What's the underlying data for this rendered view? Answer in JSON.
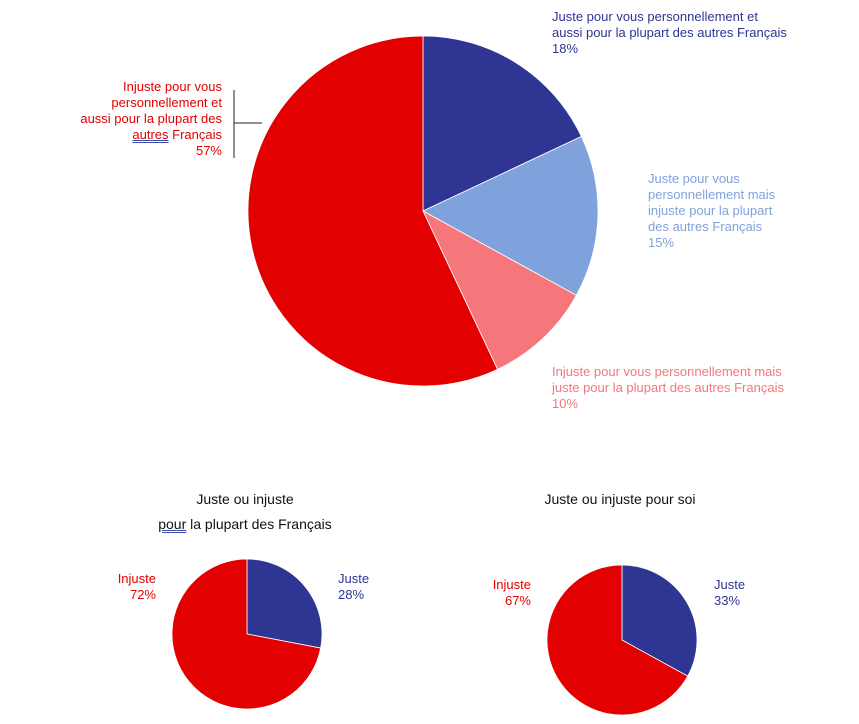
{
  "chart_data": [
    {
      "type": "pie",
      "slices": [
        {
          "label_lines": [
            "Juste pour vous personnellement et",
            "aussi pour la plupart des autres Français"
          ],
          "value": 18,
          "pct": "18%",
          "color": "#2e3592"
        },
        {
          "label_lines": [
            "Juste pour vous",
            "personnellement mais",
            "injuste pour la plupart",
            "des autres Français"
          ],
          "value": 15,
          "pct": "15%",
          "color": "#7fa2dc"
        },
        {
          "label_lines": [
            "Injuste pour vous personnellement mais",
            "juste pour la plupart des autres Français"
          ],
          "value": 10,
          "pct": "10%",
          "color": "#f6777b"
        },
        {
          "label_lines": [
            "Injuste pour vous",
            "personnellement et",
            "aussi pour la plupart des"
          ],
          "label_extra_underlined": "autres",
          "label_extra_rest": " Français",
          "value": 57,
          "pct": "57%",
          "color": "#e30000"
        }
      ]
    },
    {
      "type": "pie",
      "title_line1": "Juste ou injuste",
      "title_line2_underlined": "pour",
      "title_line2_rest": " la plupart des Français",
      "slices": [
        {
          "label": "Juste",
          "value": 28,
          "pct": "28%",
          "color": "#2e3592"
        },
        {
          "label": "Injuste",
          "value": 72,
          "pct": "72%",
          "color": "#e30000"
        }
      ]
    },
    {
      "type": "pie",
      "title": "Juste ou injuste pour soi",
      "slices": [
        {
          "label": "Juste",
          "value": 33,
          "pct": "33%",
          "color": "#2e3592"
        },
        {
          "label": "Injuste",
          "value": 67,
          "pct": "67%",
          "color": "#e30000"
        }
      ]
    }
  ]
}
